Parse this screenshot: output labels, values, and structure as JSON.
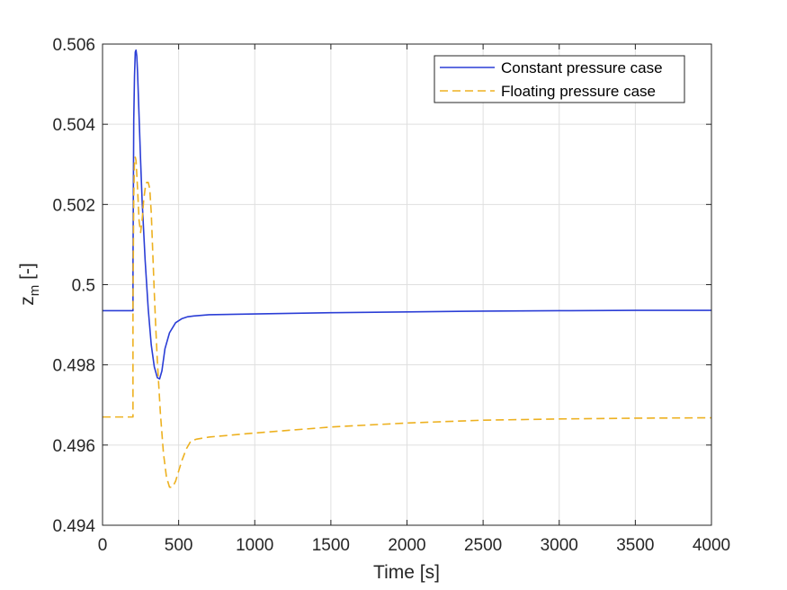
{
  "chart_data": {
    "type": "line",
    "title": "",
    "xlabel": "Time [s]",
    "ylabel_main": "z",
    "ylabel_sub": "m",
    "ylabel_unit": "[-]",
    "xlim": [
      0,
      4000
    ],
    "ylim": [
      0.494,
      0.506
    ],
    "x_ticks": [
      0,
      500,
      1000,
      1500,
      2000,
      2500,
      3000,
      3500,
      4000
    ],
    "y_ticks": [
      0.494,
      0.496,
      0.498,
      0.5,
      0.502,
      0.504,
      0.506
    ],
    "x_tick_labels": [
      "0",
      "500",
      "1000",
      "1500",
      "2000",
      "2500",
      "3000",
      "3500",
      "4000"
    ],
    "y_tick_labels": [
      "0.494",
      "0.496",
      "0.498",
      "0.5",
      "0.502",
      "0.504",
      "0.506"
    ],
    "grid": true,
    "legend_position": "top-right",
    "series": [
      {
        "name": "Constant pressure case",
        "color": "#2b3ed6",
        "dash": "solid",
        "x": [
          0,
          200,
          200,
          205,
          210,
          215,
          220,
          225,
          230,
          240,
          250,
          260,
          280,
          300,
          320,
          340,
          360,
          375,
          390,
          410,
          440,
          480,
          520,
          560,
          600,
          700,
          1000,
          1500,
          2000,
          2500,
          3000,
          3500,
          4000
        ],
        "y": [
          0.49935,
          0.49935,
          0.5005,
          0.5041,
          0.5052,
          0.5058,
          0.50585,
          0.5057,
          0.5053,
          0.5042,
          0.5031,
          0.5021,
          0.5006,
          0.4994,
          0.4985,
          0.49795,
          0.49768,
          0.49765,
          0.49785,
          0.4984,
          0.4988,
          0.49905,
          0.49915,
          0.4992,
          0.49922,
          0.49925,
          0.49927,
          0.4993,
          0.49932,
          0.49934,
          0.49935,
          0.49936,
          0.49936
        ]
      },
      {
        "name": "Floating pressure case",
        "color": "#edb120",
        "dash": "dashed",
        "x": [
          0,
          200,
          200,
          205,
          210,
          215,
          220,
          230,
          240,
          250,
          260,
          270,
          280,
          290,
          300,
          310,
          320,
          330,
          340,
          350,
          360,
          380,
          400,
          420,
          440,
          460,
          480,
          500,
          520,
          550,
          580,
          620,
          700,
          1000,
          1500,
          2000,
          2500,
          3000,
          3500,
          4000
        ],
        "y": [
          0.4967,
          0.4967,
          0.4995,
          0.5022,
          0.5031,
          0.50318,
          0.5031,
          0.5024,
          0.5016,
          0.5013,
          0.5016,
          0.5021,
          0.5024,
          0.50255,
          0.50255,
          0.5024,
          0.5018,
          0.5008,
          0.4998,
          0.4989,
          0.4981,
          0.4968,
          0.4958,
          0.4952,
          0.49495,
          0.49495,
          0.4951,
          0.49535,
          0.4956,
          0.4959,
          0.4961,
          0.49615,
          0.4962,
          0.4963,
          0.49645,
          0.49655,
          0.49662,
          0.49665,
          0.49667,
          0.49668
        ]
      }
    ]
  }
}
